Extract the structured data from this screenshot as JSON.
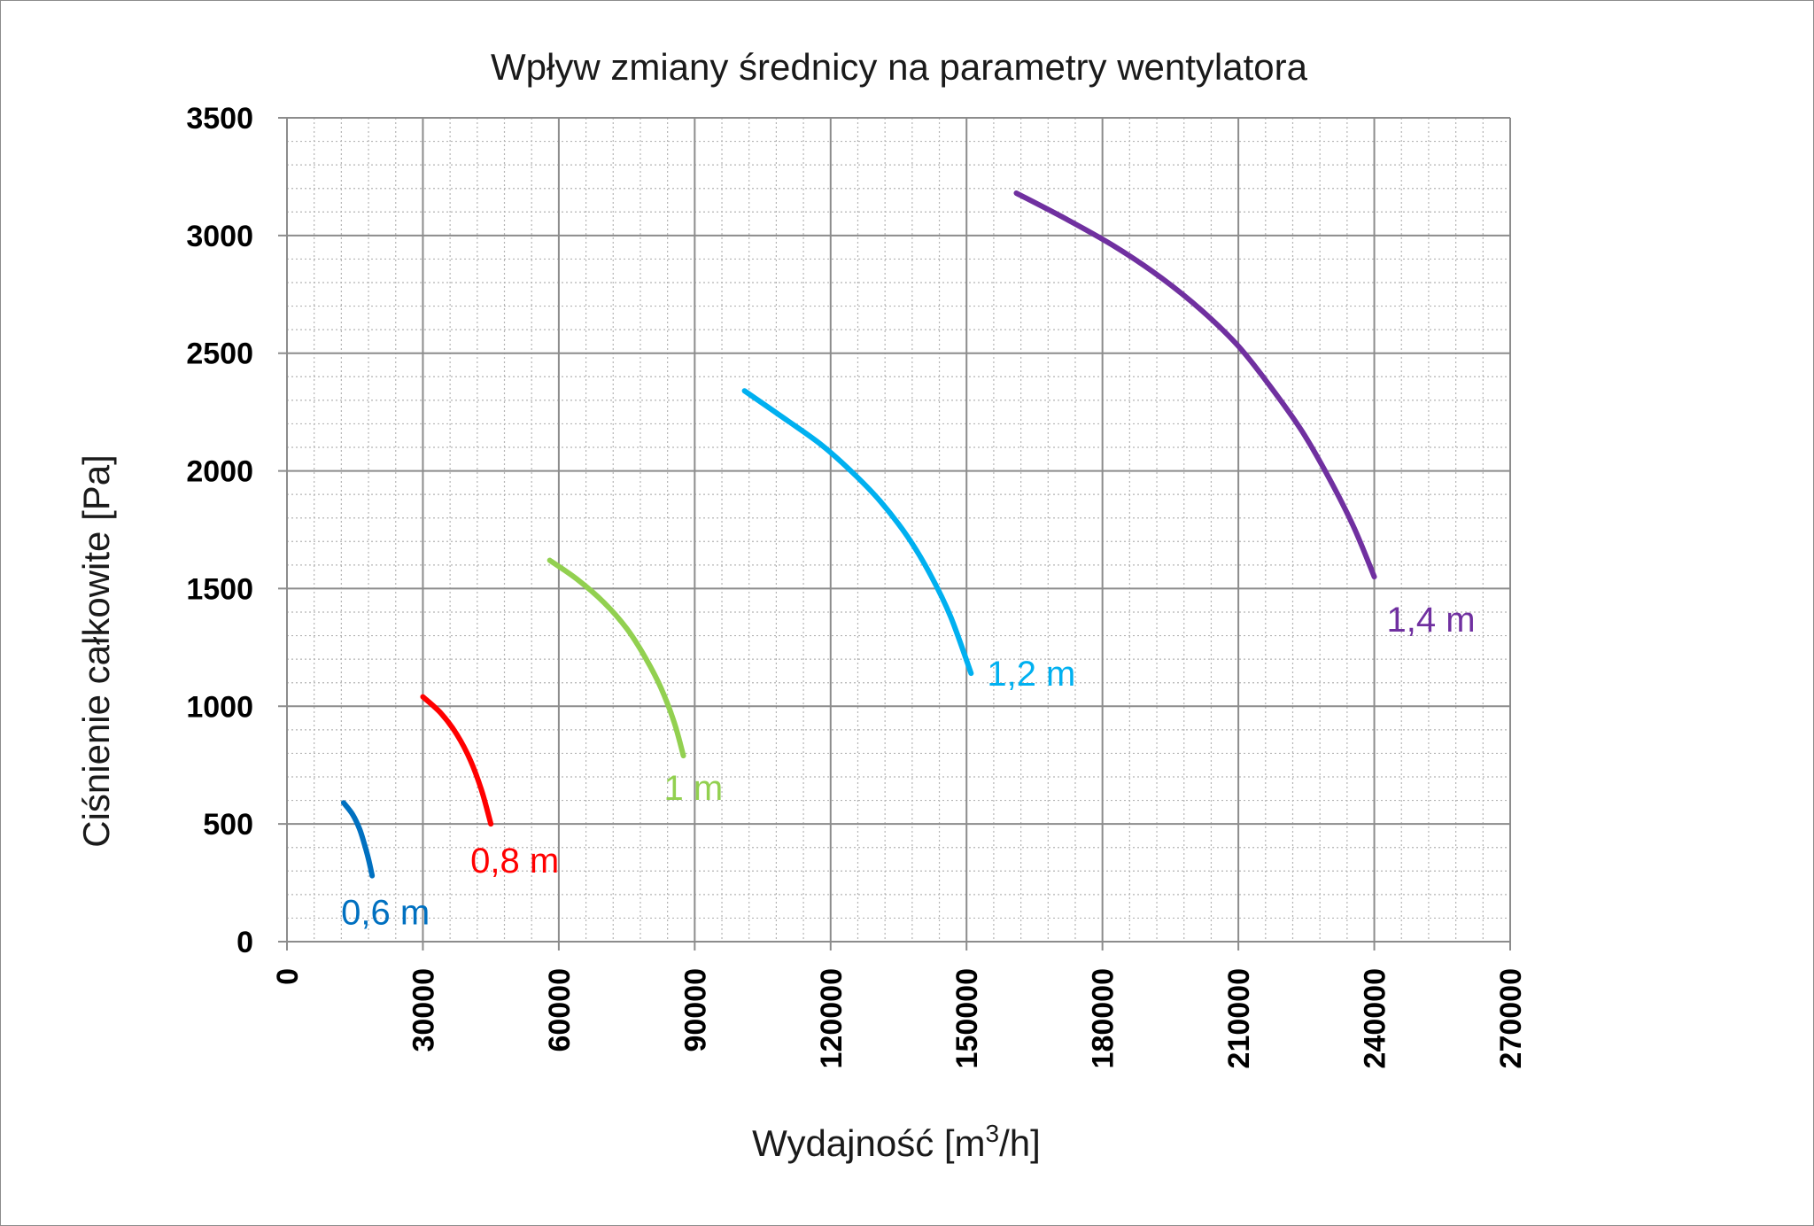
{
  "chart_data": {
    "type": "line",
    "title": "Wpływ zmiany średnicy na parametry wentylatora",
    "xlabel_main": "Wydajność [m",
    "xlabel_sup": "3",
    "xlabel_end": "/h]",
    "ylabel": "Ciśnienie całkowite [Pa]",
    "xlim": [
      0,
      270000
    ],
    "ylim": [
      0,
      3500
    ],
    "x_ticks": [
      "0",
      "30000",
      "60000",
      "90000",
      "120000",
      "150000",
      "180000",
      "210000",
      "240000",
      "270000"
    ],
    "y_ticks": [
      "0",
      "500",
      "1000",
      "1500",
      "2000",
      "2500",
      "3000",
      "3500"
    ],
    "grid": true,
    "series": [
      {
        "name": "0,6 m",
        "color": "#0070c0",
        "x": [
          12500,
          14500,
          16000,
          17000,
          18000,
          18800
        ],
        "y": [
          590,
          540,
          480,
          420,
          350,
          280
        ]
      },
      {
        "name": "0,8 m",
        "color": "#ff0000",
        "x": [
          30000,
          34000,
          37500,
          40500,
          43000,
          45000
        ],
        "y": [
          1040,
          970,
          880,
          770,
          640,
          500
        ]
      },
      {
        "name": "1 m",
        "color": "#92d050",
        "x": [
          58000,
          64000,
          70000,
          75000,
          79000,
          82500,
          85500,
          87500
        ],
        "y": [
          1620,
          1540,
          1440,
          1330,
          1210,
          1080,
          930,
          790
        ]
      },
      {
        "name": "1,2 m",
        "color": "#00b0f0",
        "x": [
          101000,
          110000,
          118000,
          125000,
          131000,
          137000,
          142000,
          146500,
          151000
        ],
        "y": [
          2340,
          2220,
          2110,
          1990,
          1870,
          1720,
          1560,
          1380,
          1140
        ]
      },
      {
        "name": "1,4 m",
        "color": "#7030a0",
        "x": [
          161000,
          172000,
          183000,
          193000,
          202000,
          210000,
          217000,
          224000,
          230000,
          235500,
          240000
        ],
        "y": [
          3180,
          3070,
          2950,
          2820,
          2680,
          2530,
          2360,
          2170,
          1970,
          1760,
          1550
        ]
      }
    ]
  }
}
